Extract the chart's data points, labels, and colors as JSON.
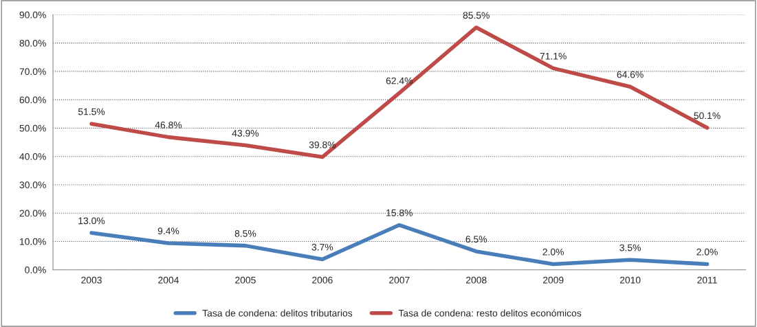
{
  "chart_data": {
    "type": "line",
    "categories": [
      "2003",
      "2004",
      "2005",
      "2006",
      "2007",
      "2008",
      "2009",
      "2010",
      "2011"
    ],
    "series": [
      {
        "name": "Tasa de condena: delitos tributarios",
        "color": "#4a7ebb",
        "values": [
          13.0,
          9.4,
          8.5,
          3.7,
          15.8,
          6.5,
          2.0,
          3.5,
          2.0
        ],
        "value_labels": [
          "13.0%",
          "9.4%",
          "8.5%",
          "3.7%",
          "15.8%",
          "6.5%",
          "2.0%",
          "3.5%",
          "2.0%"
        ]
      },
      {
        "name": "Tasa de condena: resto delitos económicos",
        "color": "#be4b48",
        "values": [
          51.5,
          46.8,
          43.9,
          39.8,
          62.4,
          85.5,
          71.1,
          64.6,
          50.1
        ],
        "value_labels": [
          "51.5%",
          "46.8%",
          "43.9%",
          "39.8%",
          "62.4%",
          "85.5%",
          "71.1%",
          "64.6%",
          "50.1%"
        ]
      }
    ],
    "ylim": [
      0,
      90
    ],
    "yticks": [
      {
        "value": 0,
        "label": "0.0%"
      },
      {
        "value": 10,
        "label": "10.0%"
      },
      {
        "value": 20,
        "label": "20.0%"
      },
      {
        "value": 30,
        "label": "30.0%"
      },
      {
        "value": 40,
        "label": "40.0%"
      },
      {
        "value": 50,
        "label": "50.0%"
      },
      {
        "value": 60,
        "label": "60.0%"
      },
      {
        "value": 70,
        "label": "70.0%"
      },
      {
        "value": 80,
        "label": "80.0%"
      },
      {
        "value": 90,
        "label": "90.0%"
      }
    ],
    "grid": "y",
    "legend": "bottom",
    "marker": "none",
    "line_style": "solid"
  }
}
